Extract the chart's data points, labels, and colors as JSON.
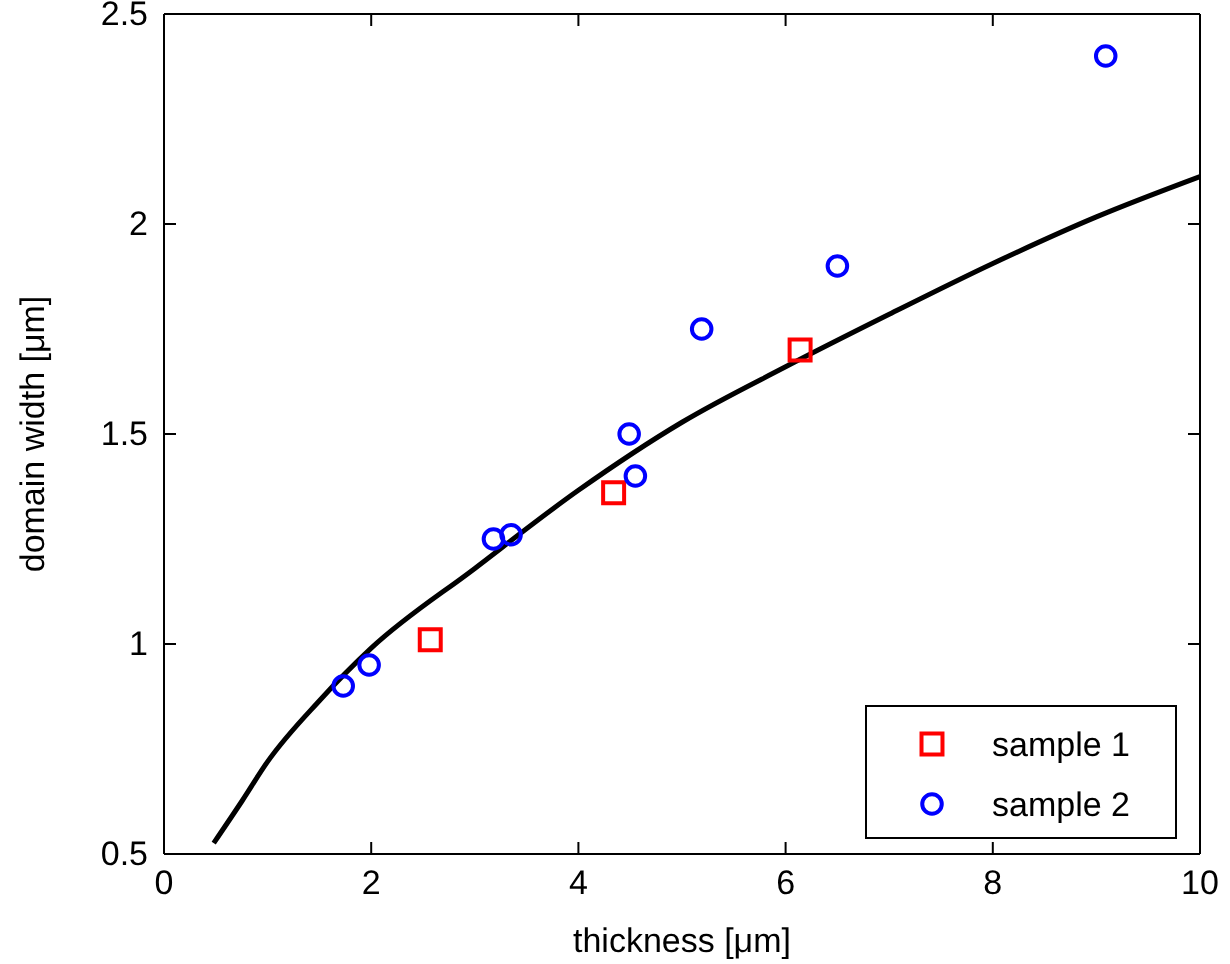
{
  "chart_data": {
    "type": "scatter",
    "xlabel": "thickness [μm]",
    "ylabel": "domain width [μm]",
    "xlim": [
      0,
      10
    ],
    "ylim": [
      0.5,
      2.5
    ],
    "xticks": [
      0,
      2,
      4,
      6,
      8,
      10
    ],
    "yticks": [
      0.5,
      1,
      1.5,
      2,
      2.5
    ],
    "grid": false,
    "legend": "bottom right",
    "series": [
      {
        "type": "line",
        "color": "#000000",
        "marker": "none",
        "line_style": "solid",
        "x": [
          0.48,
          0.75,
          1,
          1.5,
          2,
          3,
          4,
          5,
          6,
          7,
          8,
          9,
          10
        ],
        "values": [
          0.526,
          0.625,
          0.72,
          0.865,
          0.99,
          1.18,
          1.366,
          1.528,
          1.66,
          1.785,
          1.906,
          2.017,
          2.113
        ]
      },
      {
        "name": "sample 1",
        "color": "#ff0000",
        "marker": "square",
        "x": [
          2.57,
          4.34,
          6.14
        ],
        "values": [
          1.01,
          1.36,
          1.7
        ]
      },
      {
        "name": "sample 2",
        "color": "#0000ff",
        "marker": "circle",
        "x": [
          1.73,
          1.98,
          3.18,
          3.35,
          4.49,
          4.55,
          5.19,
          6.5,
          9.09
        ],
        "values": [
          0.9,
          0.95,
          1.25,
          1.26,
          1.5,
          1.4,
          1.75,
          1.9,
          2.4
        ]
      }
    ]
  }
}
